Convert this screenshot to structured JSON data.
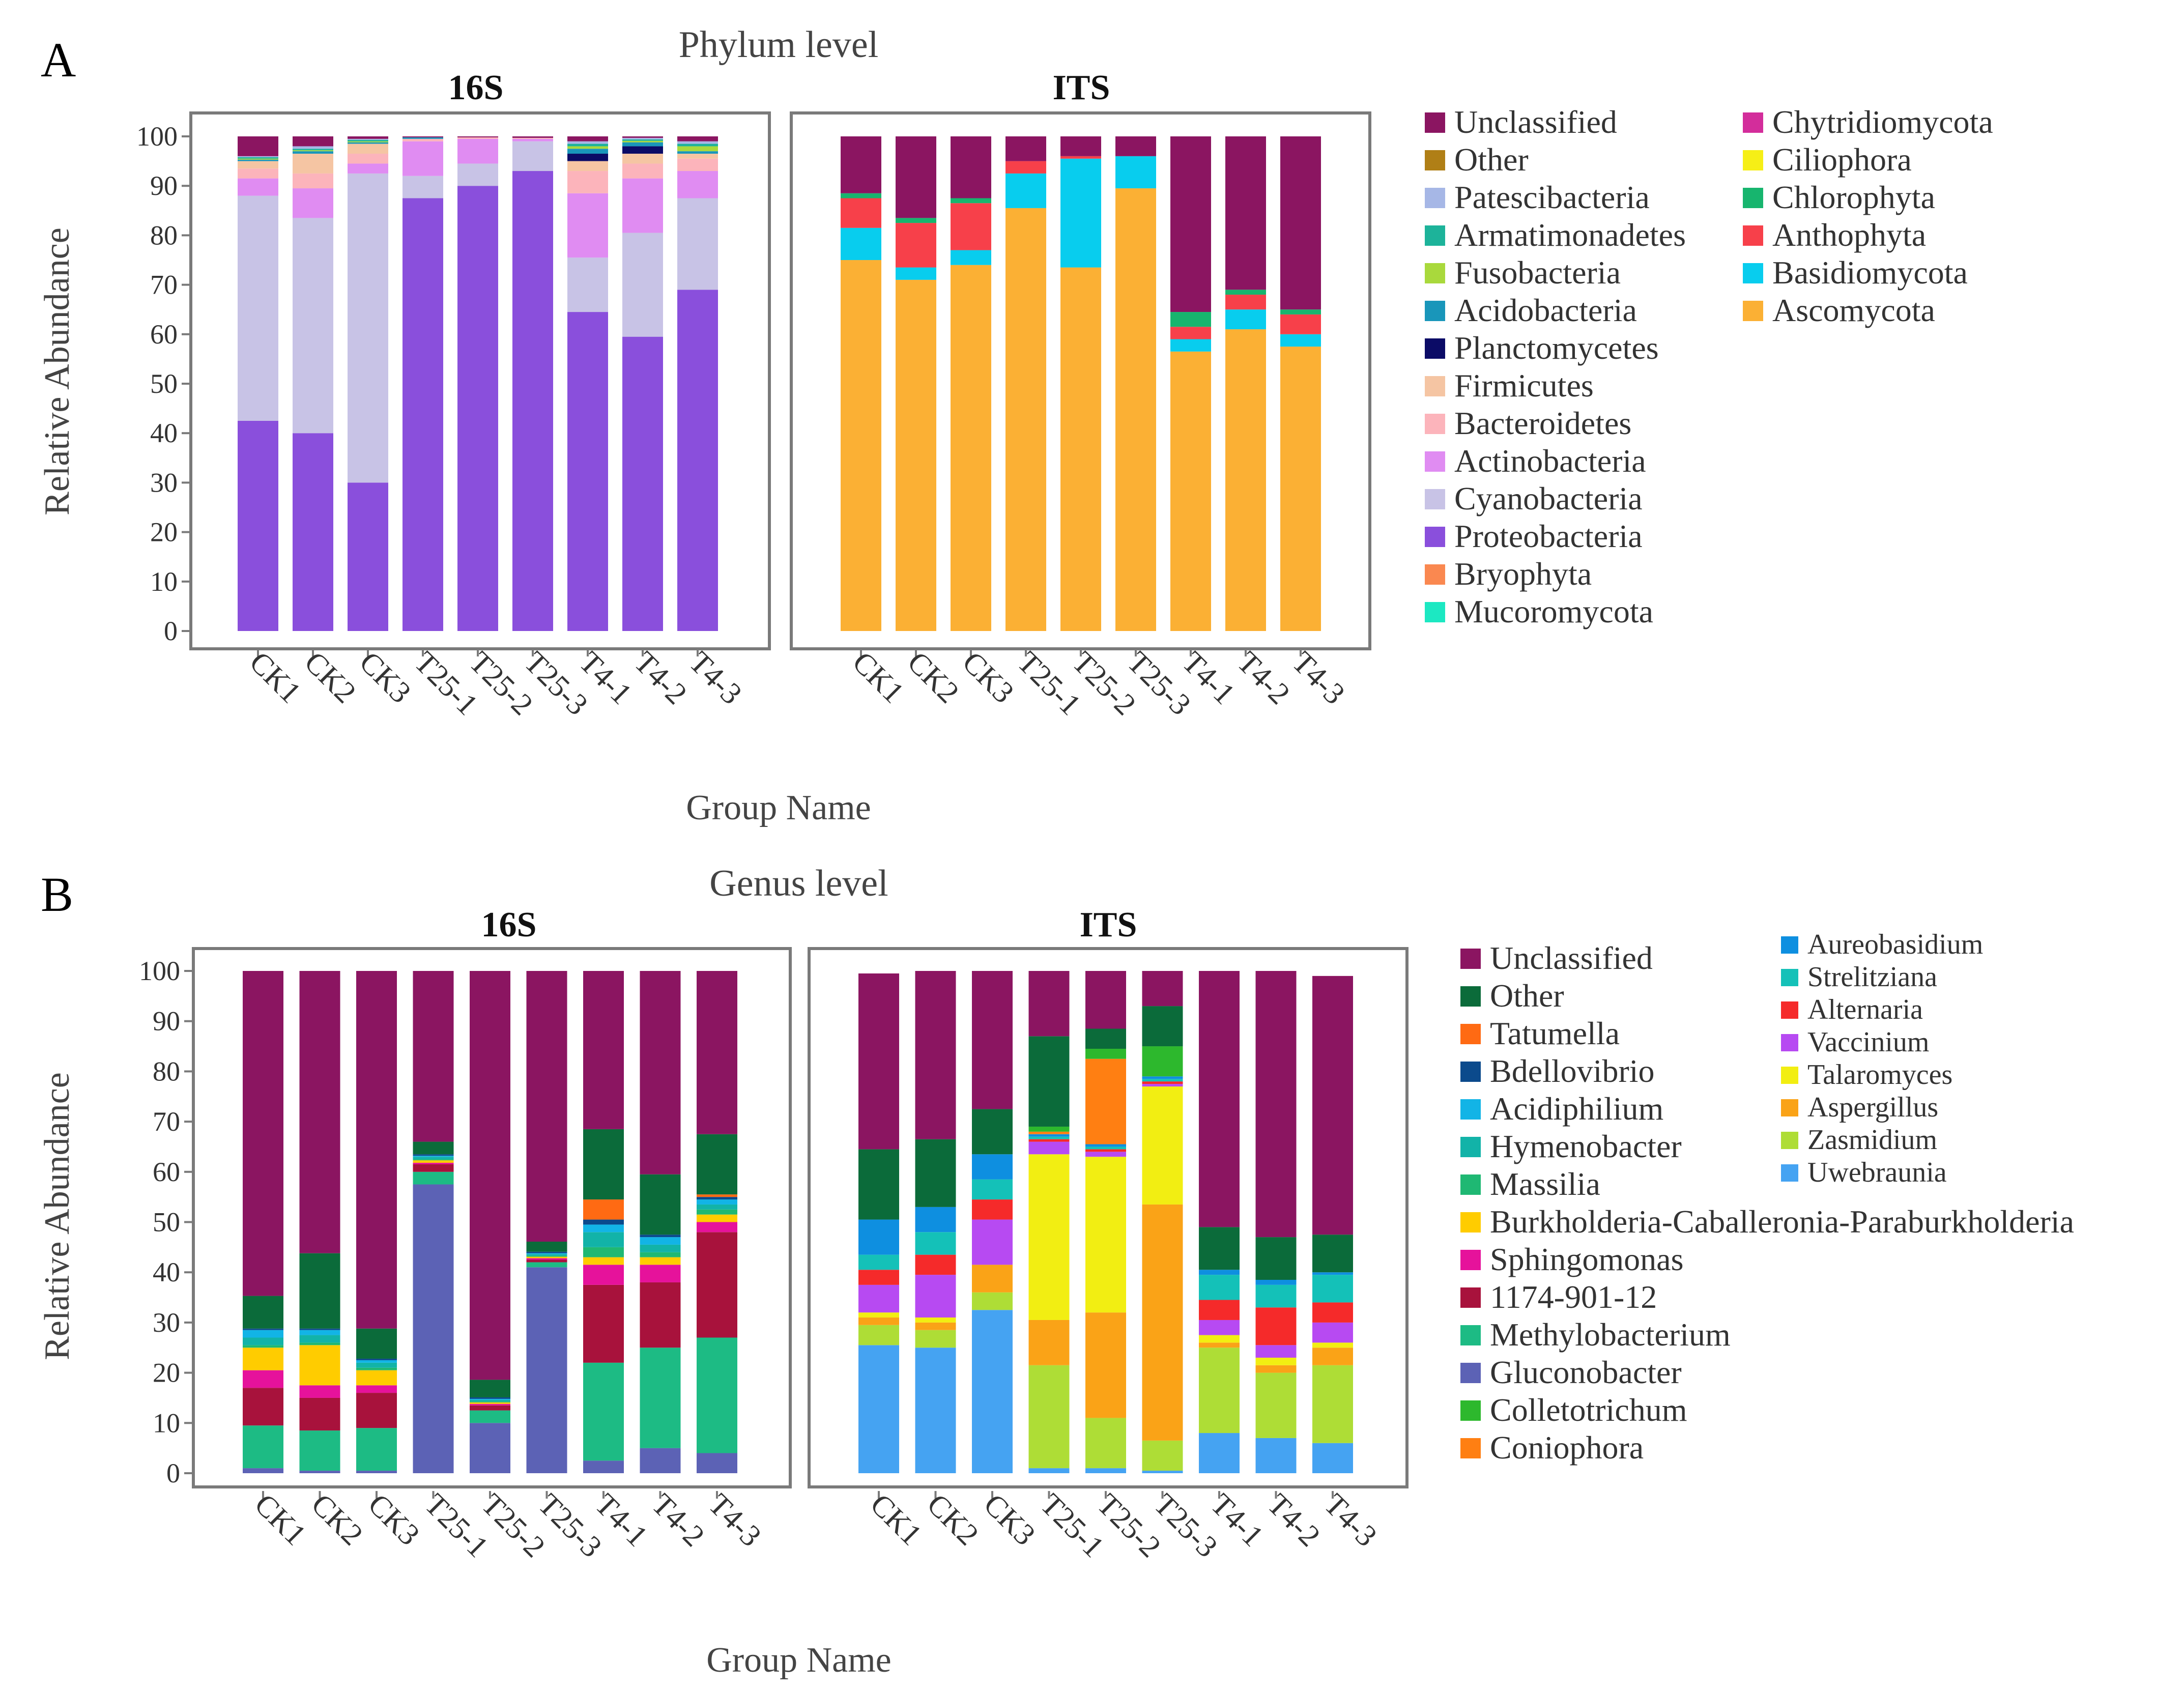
{
  "panels": [
    {
      "letter": "A",
      "title": "Phylum level",
      "xlabel": "Group Name",
      "ylabel": "Relative Abundance",
      "legend_columns": [
        [
          {
            "name": "Unclassified",
            "color": "#8B1561"
          },
          {
            "name": "Other",
            "color": "#B07F16"
          },
          {
            "name": "Patescibacteria",
            "color": "#A6B7E6"
          },
          {
            "name": "Armatimonadetes",
            "color": "#1DB39A"
          },
          {
            "name": "Fusobacteria",
            "color": "#A9D93C"
          },
          {
            "name": "Acidobacteria",
            "color": "#1996BA"
          },
          {
            "name": "Planctomycetes",
            "color": "#0B0B66"
          },
          {
            "name": "Firmicutes",
            "color": "#F5C5A3"
          },
          {
            "name": "Bacteroidetes",
            "color": "#FCB4BB"
          },
          {
            "name": "Actinobacteria",
            "color": "#E08CF2"
          },
          {
            "name": "Cyanobacteria",
            "color": "#C8C3E6"
          },
          {
            "name": "Proteobacteria",
            "color": "#8A4FDC"
          },
          {
            "name": "Bryophyta",
            "color": "#FA8850"
          },
          {
            "name": "Mucoromycota",
            "color": "#1CE8C2"
          }
        ],
        [
          {
            "name": "Chytridiomycota",
            "color": "#D32D9B"
          },
          {
            "name": "Ciliophora",
            "color": "#F6EF16"
          },
          {
            "name": "Chlorophyta",
            "color": "#17B56E"
          },
          {
            "name": "Anthophyta",
            "color": "#F7404A"
          },
          {
            "name": "Basidiomycota",
            "color": "#08CDEE"
          },
          {
            "name": "Ascomycota",
            "color": "#FBB034"
          }
        ]
      ]
    },
    {
      "letter": "B",
      "title": "Genus level",
      "xlabel": "Group Name",
      "ylabel": "Relative Abundance",
      "legend_columns": [
        [
          {
            "name": "Unclassified",
            "color": "#8B1561"
          },
          {
            "name": "Other",
            "color": "#0B6B3A"
          },
          {
            "name": "Tatumella",
            "color": "#FF6A13"
          },
          {
            "name": "Bdellovibrio",
            "color": "#0B4A8C"
          },
          {
            "name": "Acidiphilium",
            "color": "#12B4E6"
          },
          {
            "name": "Hymenobacter",
            "color": "#12B3A8"
          },
          {
            "name": "Massilia",
            "color": "#1FB873"
          },
          {
            "name": "Burkholderia-Caballeronia-Paraburkholderia",
            "color": "#FFCC00"
          },
          {
            "name": "Sphingomonas",
            "color": "#E6129B"
          },
          {
            "name": "1174-901-12",
            "color": "#A8123C"
          },
          {
            "name": "Methylobacterium",
            "color": "#1DBB84"
          },
          {
            "name": "Gluconobacter",
            "color": "#5C62B5"
          },
          {
            "name": "Colletotrichum",
            "color": "#2DB82D"
          },
          {
            "name": "Coniophora",
            "color": "#FF7F12"
          }
        ],
        [
          {
            "name": "Aureobasidium",
            "color": "#0E8FE0"
          },
          {
            "name": "Strelitziana",
            "color": "#14C1B8"
          },
          {
            "name": "Alternaria",
            "color": "#F52A2A"
          },
          {
            "name": "Vaccinium",
            "color": "#B74AF2"
          },
          {
            "name": "Talaromyces",
            "color": "#F2EE12"
          },
          {
            "name": "Aspergillus",
            "color": "#FAA317"
          },
          {
            "name": "Zasmidium",
            "color": "#AEDD36"
          },
          {
            "name": "Uwebraunia",
            "color": "#45A3F2"
          }
        ]
      ]
    }
  ],
  "chart_data": [
    {
      "type": "bar",
      "stacked": true,
      "panel": "A",
      "title": "16S",
      "categories": [
        "CK1",
        "CK2",
        "CK3",
        "T25-1",
        "T25-2",
        "T25-3",
        "T4-1",
        "T4-2",
        "T4-3"
      ],
      "ylim": [
        0,
        100
      ],
      "yticks": [
        0,
        10,
        20,
        30,
        40,
        50,
        60,
        70,
        80,
        90,
        100
      ],
      "series": [
        {
          "name": "Proteobacteria",
          "color": "#8A4FDC",
          "values": [
            42.5,
            40,
            30,
            87.5,
            90,
            93,
            64.5,
            59.5,
            69
          ]
        },
        {
          "name": "Cyanobacteria",
          "color": "#C8C3E6",
          "values": [
            45.5,
            43.5,
            62.5,
            4.5,
            4.5,
            6,
            11,
            21,
            18.5
          ]
        },
        {
          "name": "Actinobacteria",
          "color": "#E08CF2",
          "values": [
            3.5,
            6,
            2,
            7,
            5,
            0.5,
            13,
            11,
            5.5
          ]
        },
        {
          "name": "Bacteroidetes",
          "color": "#FCB4BB",
          "values": [
            2,
            3,
            2,
            0.5,
            0.3,
            0.2,
            4.5,
            3,
            2.5
          ]
        },
        {
          "name": "Firmicutes",
          "color": "#F5C5A3",
          "values": [
            1.5,
            4,
            2,
            0,
            0,
            0,
            2,
            2,
            1
          ]
        },
        {
          "name": "Planctomycetes",
          "color": "#0B0B66",
          "values": [
            0,
            0,
            0,
            0,
            0,
            0,
            1.5,
            1.5,
            0
          ]
        },
        {
          "name": "Acidobacteria",
          "color": "#1996BA",
          "values": [
            0.3,
            0.5,
            0.3,
            0.3,
            0,
            0,
            1,
            0.8,
            0.5
          ]
        },
        {
          "name": "Fusobacteria",
          "color": "#A9D93C",
          "values": [
            0.2,
            0.2,
            0.2,
            0,
            0,
            0,
            0.5,
            0.3,
            1
          ]
        },
        {
          "name": "Armatimonadetes",
          "color": "#1DB39A",
          "values": [
            0.3,
            0.3,
            0.3,
            0,
            0,
            0,
            0.5,
            0.3,
            0.5
          ]
        },
        {
          "name": "Patescibacteria",
          "color": "#A6B7E6",
          "values": [
            0.2,
            0.5,
            0.2,
            0,
            0,
            0,
            0.5,
            0.3,
            0.5
          ]
        },
        {
          "name": "Other",
          "color": "#B07F16",
          "values": [
            0,
            0,
            0,
            0,
            0,
            0,
            0,
            0,
            0
          ]
        },
        {
          "name": "Unclassified",
          "color": "#8B1561",
          "values": [
            4,
            2,
            0.5,
            0.2,
            0.2,
            0.3,
            1,
            1,
            1
          ]
        }
      ]
    },
    {
      "type": "bar",
      "stacked": true,
      "panel": "A",
      "title": "ITS",
      "categories": [
        "CK1",
        "CK2",
        "CK3",
        "T25-1",
        "T25-2",
        "T25-3",
        "T4-1",
        "T4-2",
        "T4-3"
      ],
      "ylim": [
        0,
        100
      ],
      "series": [
        {
          "name": "Ascomycota",
          "color": "#FBB034",
          "values": [
            75,
            71,
            74,
            85.5,
            73.5,
            89.5,
            56.5,
            61,
            57.5
          ]
        },
        {
          "name": "Basidiomycota",
          "color": "#08CDEE",
          "values": [
            6.5,
            2.5,
            3,
            7,
            22,
            6.5,
            2.5,
            4,
            2.5
          ]
        },
        {
          "name": "Anthophyta",
          "color": "#F7404A",
          "values": [
            6,
            9,
            9.5,
            2.5,
            0.5,
            0,
            2.5,
            3,
            4
          ]
        },
        {
          "name": "Chlorophyta",
          "color": "#17B56E",
          "values": [
            1,
            1,
            1,
            0,
            0,
            0,
            3,
            1,
            1
          ]
        },
        {
          "name": "Unclassified",
          "color": "#8B1561",
          "values": [
            11.5,
            16.5,
            12.5,
            5,
            4,
            4,
            35.5,
            31,
            35
          ]
        }
      ]
    },
    {
      "type": "bar",
      "stacked": true,
      "panel": "B",
      "title": "16S",
      "categories": [
        "CK1",
        "CK2",
        "CK3",
        "T25-1",
        "T25-2",
        "T25-3",
        "T4-1",
        "T4-2",
        "T4-3"
      ],
      "ylim": [
        0,
        100
      ],
      "yticks": [
        0,
        10,
        20,
        30,
        40,
        50,
        60,
        70,
        80,
        90,
        100
      ],
      "series": [
        {
          "name": "Gluconobacter",
          "color": "#5C62B5",
          "values": [
            1,
            0.5,
            0.5,
            57.5,
            10,
            41,
            2.5,
            5,
            4
          ]
        },
        {
          "name": "Methylobacterium",
          "color": "#1DBB84",
          "values": [
            8.5,
            8,
            8.5,
            2.5,
            2.5,
            1,
            19.5,
            20,
            23
          ]
        },
        {
          "name": "1174-901-12",
          "color": "#A8123C",
          "values": [
            7.5,
            6.5,
            7,
            1.5,
            1,
            0.5,
            15.5,
            13,
            21
          ]
        },
        {
          "name": "Sphingomonas",
          "color": "#E6129B",
          "values": [
            3.5,
            2.5,
            1.5,
            0.3,
            0.3,
            0.3,
            4,
            3.5,
            2
          ]
        },
        {
          "name": "Burkholderia-Caballeronia-Paraburkholderia",
          "color": "#FFCC00",
          "values": [
            4.5,
            8,
            3,
            0.5,
            0.3,
            0.3,
            1.5,
            1.5,
            1.5
          ]
        },
        {
          "name": "Massilia",
          "color": "#1FB873",
          "values": [
            0.5,
            0.5,
            0.5,
            0.2,
            0.2,
            0.2,
            2,
            1,
            1
          ]
        },
        {
          "name": "Hymenobacter",
          "color": "#12B3A8",
          "values": [
            1.5,
            1.5,
            1,
            0.5,
            0.3,
            0.3,
            3,
            1.5,
            1
          ]
        },
        {
          "name": "Acidiphilium",
          "color": "#12B4E6",
          "values": [
            1.5,
            1,
            0.5,
            0.2,
            0.2,
            0.2,
            1.5,
            1.5,
            1
          ]
        },
        {
          "name": "Bdellovibrio",
          "color": "#0B4A8C",
          "values": [
            0.3,
            0.3,
            0.3,
            0.3,
            0.3,
            0.3,
            1,
            0.5,
            0.5
          ]
        },
        {
          "name": "Tatumella",
          "color": "#FF6A13",
          "values": [
            0,
            0,
            0,
            0,
            0,
            0,
            4,
            0,
            0.5
          ]
        },
        {
          "name": "Other",
          "color": "#0B6B3A",
          "values": [
            6.5,
            15,
            6,
            2.5,
            3.5,
            2,
            14,
            12,
            12
          ]
        },
        {
          "name": "Unclassified",
          "color": "#8B1561",
          "values": [
            64.7,
            56.2,
            71.2,
            34.0,
            81.4,
            53.9,
            31.5,
            40.5,
            32.5
          ]
        }
      ]
    },
    {
      "type": "bar",
      "stacked": true,
      "panel": "B",
      "title": "ITS",
      "categories": [
        "CK1",
        "CK2",
        "CK3",
        "T25-1",
        "T25-2",
        "T25-3",
        "T4-1",
        "T4-2",
        "T4-3"
      ],
      "ylim": [
        0,
        100
      ],
      "series": [
        {
          "name": "Uwebraunia",
          "color": "#45A3F2",
          "values": [
            25.5,
            25,
            32.5,
            1,
            1,
            0.5,
            8,
            7,
            6
          ]
        },
        {
          "name": "Zasmidium",
          "color": "#AEDD36",
          "values": [
            4,
            3.5,
            3.5,
            20.5,
            10,
            6,
            17,
            13,
            15.5
          ]
        },
        {
          "name": "Aspergillus",
          "color": "#FAA317",
          "values": [
            1.5,
            1.5,
            5.5,
            9,
            21,
            47,
            1,
            1.5,
            3.5
          ]
        },
        {
          "name": "Talaromyces",
          "color": "#F2EE12",
          "values": [
            1,
            1,
            0,
            33,
            31,
            23.5,
            1.5,
            1.5,
            1
          ]
        },
        {
          "name": "Vaccinium",
          "color": "#B74AF2",
          "values": [
            5.5,
            8.5,
            9,
            2.5,
            1,
            0.5,
            3,
            2.5,
            4
          ]
        },
        {
          "name": "Alternaria",
          "color": "#F52A2A",
          "values": [
            3,
            4,
            4,
            0.5,
            0.5,
            0.5,
            4,
            7.5,
            4
          ]
        },
        {
          "name": "Strelitziana",
          "color": "#14C1B8",
          "values": [
            3,
            4.5,
            4,
            0.5,
            0.5,
            0.5,
            5,
            4.5,
            5.5
          ]
        },
        {
          "name": "Aureobasidium",
          "color": "#0E8FE0",
          "values": [
            7,
            5,
            5,
            0.5,
            0.5,
            0.5,
            1,
            1,
            0.5
          ]
        },
        {
          "name": "Coniophora",
          "color": "#FF7F12",
          "values": [
            0,
            0,
            0,
            0.5,
            17,
            0,
            0,
            0,
            0
          ]
        },
        {
          "name": "Colletotrichum",
          "color": "#2DB82D",
          "values": [
            0,
            0,
            0,
            1,
            2,
            6,
            0,
            0,
            0
          ]
        },
        {
          "name": "Other",
          "color": "#0B6B3A",
          "values": [
            14,
            13.5,
            9,
            18,
            4,
            8,
            8.5,
            8.5,
            7.5
          ]
        },
        {
          "name": "Unclassified",
          "color": "#8B1561",
          "values": [
            35,
            33.5,
            27.5,
            13,
            11.5,
            7,
            51,
            53,
            51.5
          ]
        }
      ]
    }
  ]
}
